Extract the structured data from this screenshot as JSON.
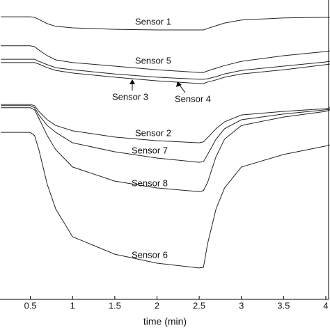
{
  "chart_data": {
    "type": "line",
    "x_label": "time (min)",
    "x": [
      0.15,
      0.5,
      0.55,
      0.6,
      0.7,
      0.8,
      1,
      1.5,
      2,
      2.5,
      2.55,
      2.6,
      2.7,
      2.8,
      3,
      3.5,
      4,
      4.05
    ],
    "xlim": [
      0.14,
      4.05
    ],
    "xticks": [
      0.5,
      1,
      1.5,
      2,
      2.5,
      3,
      3.5,
      4
    ],
    "ylim": [
      0,
      100
    ],
    "series": [
      {
        "name": "Sensor 1",
        "color": "#222222",
        "values": [
          94.4,
          94.4,
          94.2,
          93.5,
          92.1,
          91.2,
          90.7,
          90.2,
          90.0,
          90.0,
          90.0,
          90.5,
          91.4,
          92.3,
          93.3,
          94.0,
          94.2,
          94.2
        ]
      },
      {
        "name": "Sensor 5",
        "color": "#222222",
        "values": [
          84.7,
          84.7,
          84.4,
          83.3,
          81.4,
          80.0,
          79.1,
          77.9,
          76.7,
          75.8,
          75.8,
          76.3,
          77.2,
          78.1,
          79.5,
          81.4,
          82.8,
          83.0
        ]
      },
      {
        "name": "Sensor 3",
        "color": "#222222",
        "values": [
          80.2,
          80.2,
          80.2,
          79.5,
          78.4,
          77.4,
          76.7,
          75.3,
          74.2,
          73.5,
          73.5,
          73.7,
          74.4,
          75.3,
          76.5,
          77.9,
          79.3,
          79.5
        ]
      },
      {
        "name": "Sensor 4",
        "color": "#222222",
        "values": [
          79.1,
          79.1,
          79.1,
          78.6,
          77.4,
          76.5,
          75.6,
          74.2,
          73.0,
          72.1,
          72.1,
          72.6,
          73.3,
          74.2,
          75.3,
          76.7,
          78.4,
          78.6
        ]
      },
      {
        "name": "Sensor 2",
        "color": "#222222",
        "values": [
          65.1,
          65.1,
          64.7,
          62.8,
          60.0,
          58.1,
          56.3,
          54.2,
          53.0,
          52.3,
          52.6,
          54.0,
          57.0,
          59.3,
          61.6,
          62.8,
          63.7,
          64.0
        ]
      },
      {
        "name": "Sensor 7",
        "color": "#222222",
        "values": [
          64.7,
          64.7,
          64.0,
          61.6,
          58.1,
          55.8,
          52.3,
          49.3,
          47.2,
          45.8,
          46.0,
          48.4,
          53.5,
          57.0,
          60.0,
          61.9,
          63.3,
          63.5
        ]
      },
      {
        "name": "Sensor 8",
        "color": "#222222",
        "values": [
          64.0,
          64.0,
          63.3,
          60.5,
          54.7,
          50.0,
          44.2,
          39.5,
          37.2,
          36.0,
          36.3,
          39.1,
          47.7,
          53.5,
          58.1,
          60.9,
          62.8,
          63.3
        ]
      },
      {
        "name": "Sensor 6",
        "color": "#222222",
        "values": [
          55.8,
          55.8,
          54.7,
          50.0,
          38.4,
          30.2,
          20.9,
          15.1,
          12.1,
          10.5,
          10.7,
          18.6,
          30.2,
          37.2,
          44.2,
          48.4,
          51.2,
          51.6
        ]
      }
    ]
  }
}
